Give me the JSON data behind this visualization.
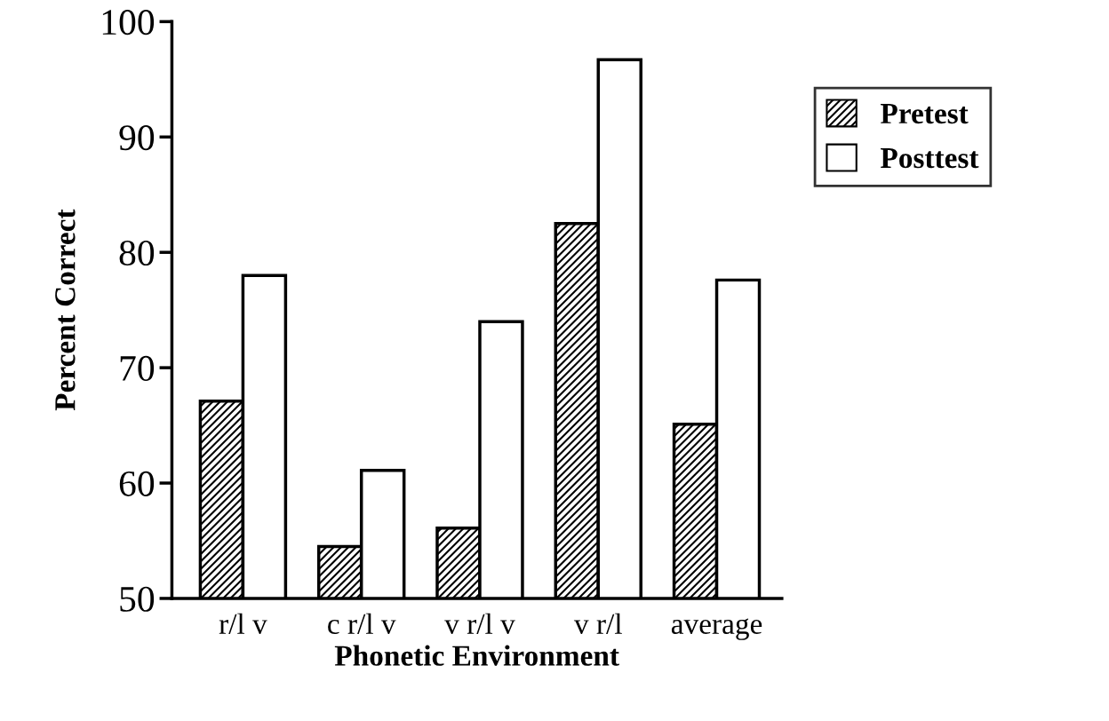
{
  "chart_data": {
    "type": "bar",
    "xlabel": "Phonetic Environment",
    "ylabel": "Percent Correct",
    "categories": [
      "r/l v",
      "c r/l v",
      "v r/l v",
      "v r/l",
      "average"
    ],
    "series": [
      {
        "name": "Pretest",
        "color": "#000000",
        "values": [
          67.1,
          54.5,
          56.1,
          82.5,
          65.1
        ]
      },
      {
        "name": "Posttest",
        "color": "#ffffff",
        "values": [
          78.0,
          61.1,
          74.0,
          96.7,
          77.6
        ]
      }
    ],
    "ylim": [
      50,
      100
    ],
    "yticks": [
      50,
      60,
      70,
      80,
      90,
      100
    ],
    "grid": false,
    "legend": "right"
  }
}
